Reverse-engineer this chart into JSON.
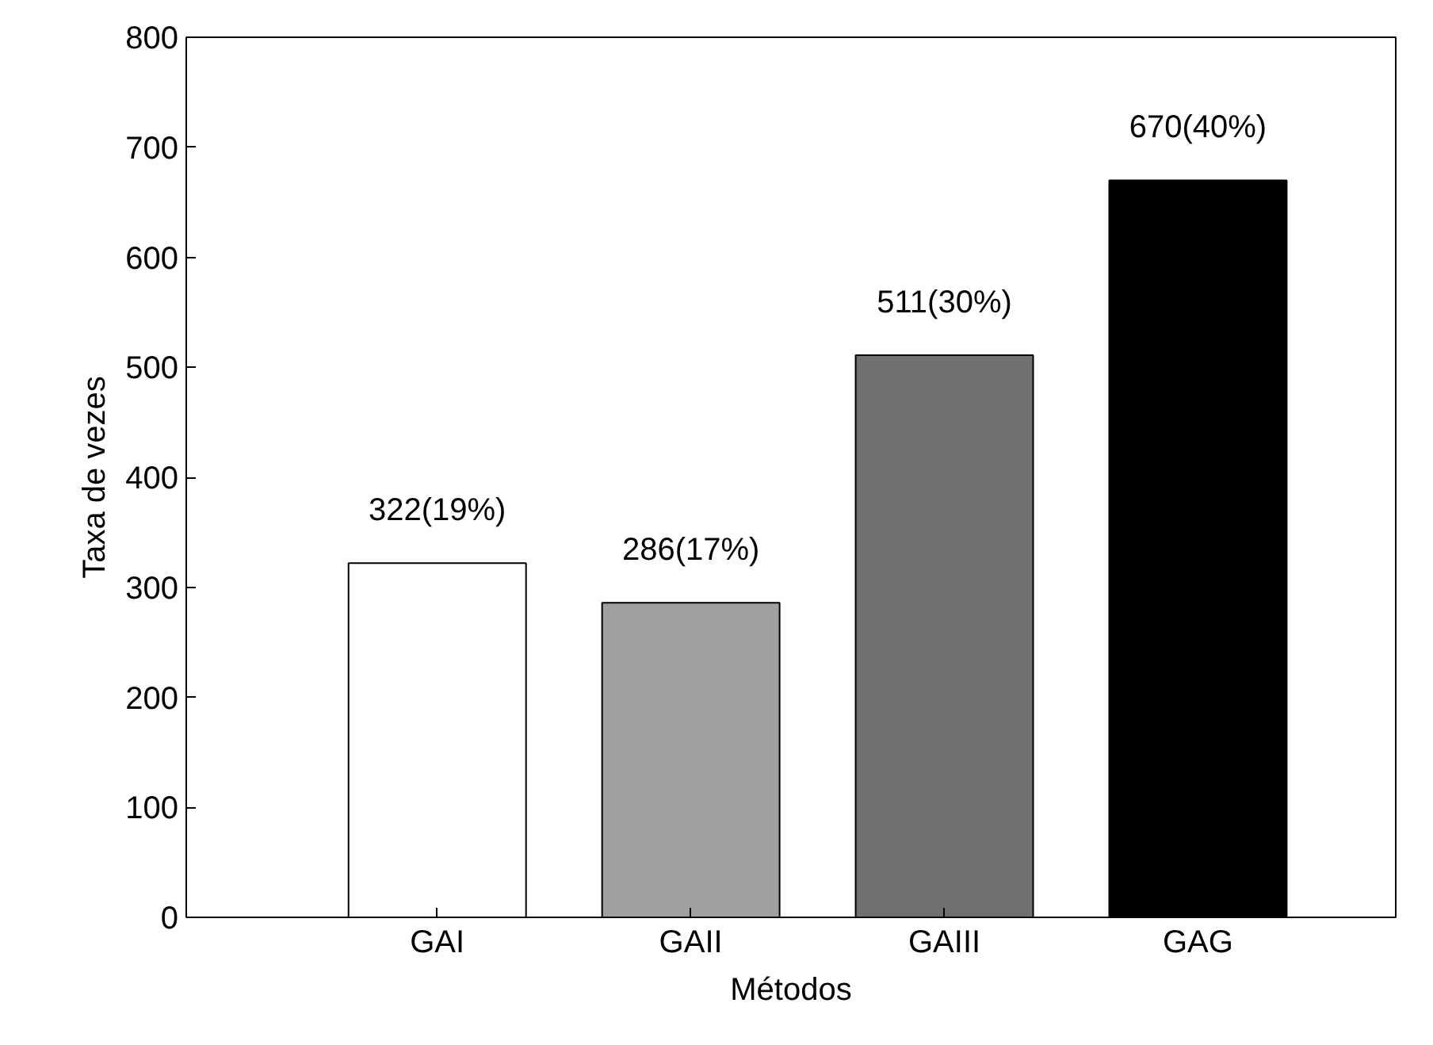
{
  "chart_data": {
    "type": "bar",
    "xlabel": "Métodos",
    "ylabel": "Taxa de vezes",
    "categories": [
      "GAI",
      "GAII",
      "GAIII",
      "GAG"
    ],
    "values": [
      322,
      286,
      511,
      670
    ],
    "colors": [
      "#ffffff",
      "#a0a0a0",
      "#707070",
      "#000000"
    ],
    "value_labels": [
      "322(19%)",
      "286(17%)",
      "511(30%)",
      "670(40%)"
    ],
    "ylim": [
      0,
      800
    ],
    "yticks": [
      0,
      100,
      200,
      300,
      400,
      500,
      600,
      700,
      800
    ],
    "grid": false
  }
}
